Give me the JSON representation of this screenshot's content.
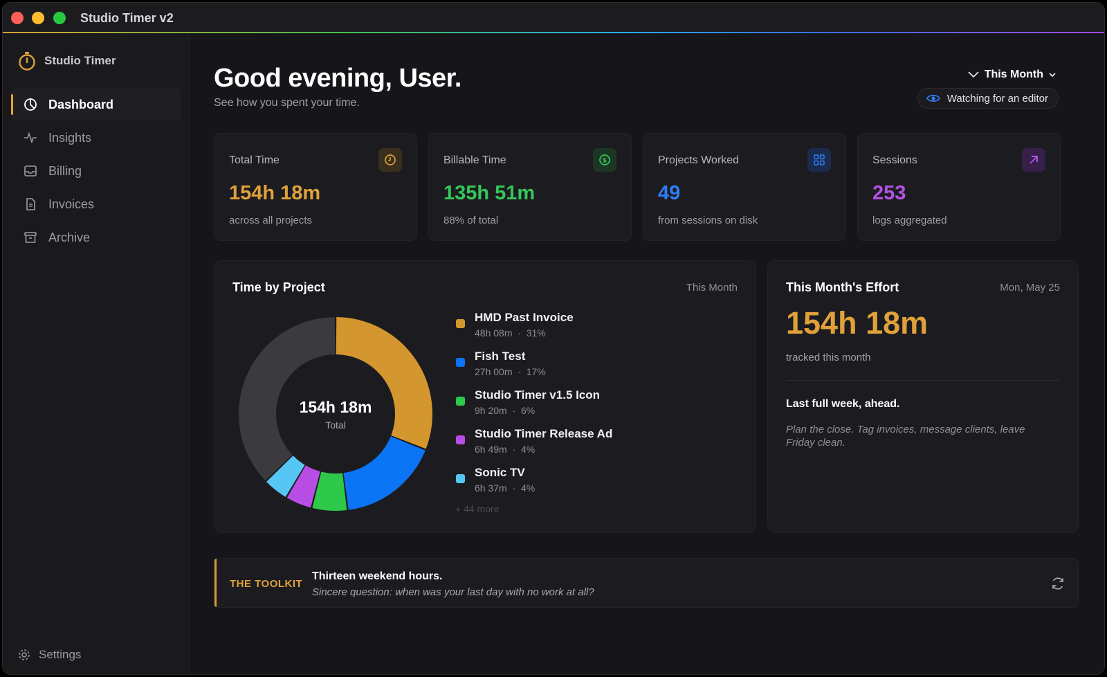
{
  "window": {
    "title": "Studio Timer v2"
  },
  "sidebar": {
    "brand": "Studio Timer",
    "items": [
      {
        "label": "Dashboard",
        "icon": "clock-pie-icon",
        "active": true
      },
      {
        "label": "Insights",
        "icon": "activity-icon",
        "active": false
      },
      {
        "label": "Billing",
        "icon": "inbox-icon",
        "active": false
      },
      {
        "label": "Invoices",
        "icon": "document-icon",
        "active": false
      },
      {
        "label": "Archive",
        "icon": "archive-icon",
        "active": false
      }
    ],
    "settings": "Settings"
  },
  "header": {
    "greeting": "Good evening, User.",
    "subtitle": "See how you spent your time.",
    "period": "This Month",
    "watch_status": "Watching for an editor"
  },
  "stats": [
    {
      "label": "Total Time",
      "value": "154h 18m",
      "sub": "across all projects",
      "color": "#e0a13a",
      "icon": "clock-icon"
    },
    {
      "label": "Billable Time",
      "value": "135h 51m",
      "sub": "88% of total",
      "color": "#34c759",
      "icon": "dollar-icon"
    },
    {
      "label": "Projects Worked",
      "value": "49",
      "sub": "from sessions on disk",
      "color": "#2f7df6",
      "icon": "grid-icon"
    },
    {
      "label": "Sessions",
      "value": "253",
      "sub": "logs aggregated",
      "color": "#b452e8",
      "icon": "arrow-up-right-icon"
    }
  ],
  "time_by_project": {
    "title": "Time by Project",
    "period": "This Month",
    "total": "154h 18m",
    "total_label": "Total",
    "projects": [
      {
        "name": "HMD Past Invoice",
        "duration": "48h 08m",
        "share": "31%",
        "fraction": 0.31,
        "color": "#d4962f"
      },
      {
        "name": "Fish Test",
        "duration": "27h 00m",
        "share": "17%",
        "fraction": 0.17,
        "color": "#0a74f5"
      },
      {
        "name": "Studio Timer v1.5 Icon",
        "duration": "9h 20m",
        "share": "6%",
        "fraction": 0.06,
        "color": "#2ec84a"
      },
      {
        "name": "Studio Timer Release Ad",
        "duration": "6h 49m",
        "share": "4%",
        "fraction": 0.045,
        "color": "#b84de6"
      },
      {
        "name": "Sonic TV",
        "duration": "6h 37m",
        "share": "4%",
        "fraction": 0.043,
        "color": "#56c6f5"
      }
    ],
    "other_fraction": 0.372,
    "other_color": "#3a3a3f",
    "more": "+ 44 more"
  },
  "effort": {
    "title": "This Month's Effort",
    "date": "Mon, May 25",
    "value": "154h 18m",
    "sub": "tracked this month",
    "headline": "Last full week, ahead.",
    "note": "Plan the close. Tag invoices, message clients, leave Friday clean."
  },
  "toolkit": {
    "tag": "THE TOOLKIT",
    "title": "Thirteen weekend hours.",
    "text": "Sincere question: when was your last day with no work at all?"
  }
}
